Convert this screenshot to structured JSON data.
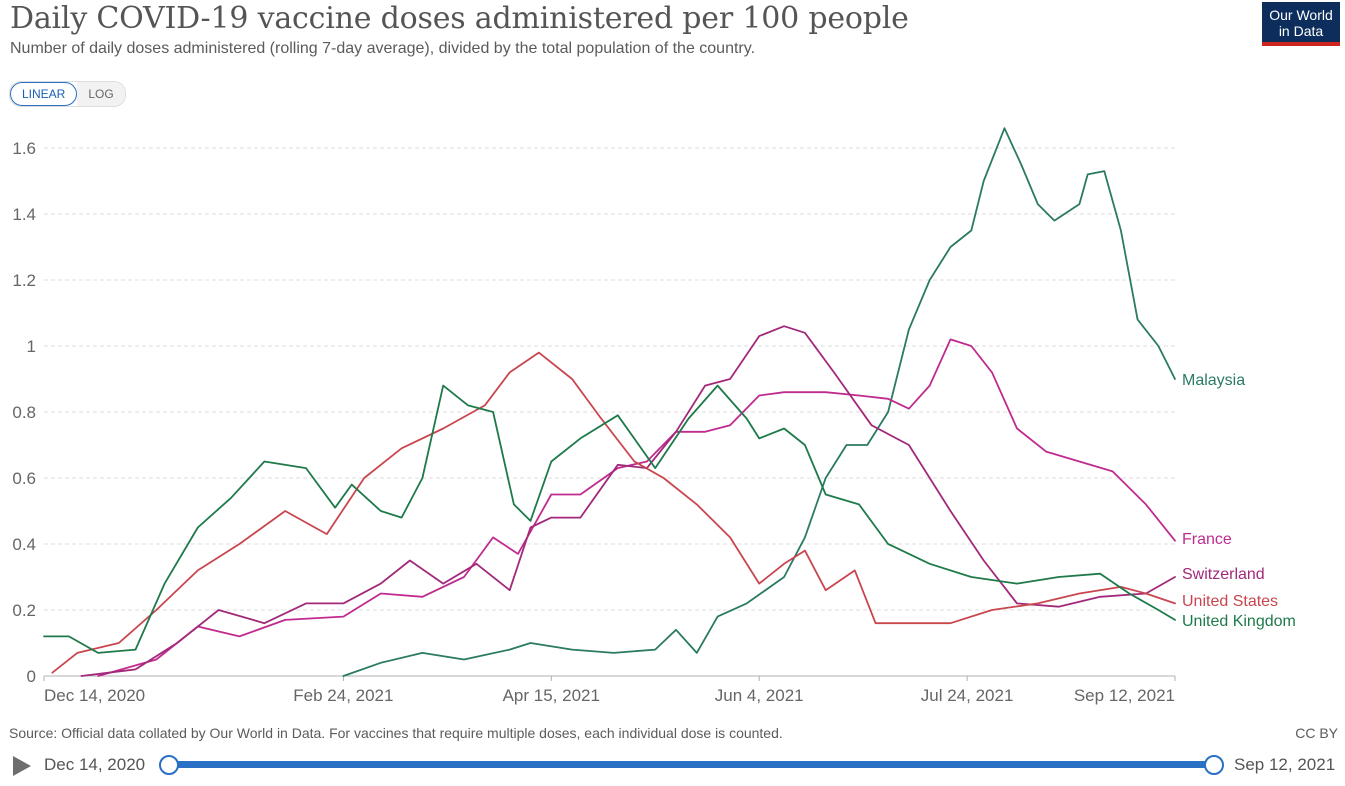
{
  "header": {
    "title": "Daily COVID-19 vaccine doses administered per 100 people",
    "subtitle": "Number of daily doses administered (rolling 7-day average), divided by the total population of the country.",
    "logo_line1": "Our World",
    "logo_line2": "in Data"
  },
  "controls": {
    "linear_label": "LINEAR",
    "log_label": "LOG"
  },
  "footer": {
    "source": "Source: Official data collated by Our World in Data. For vaccines that require multiple doses, each individual dose is counted.",
    "license": "CC BY"
  },
  "timeline": {
    "start_label": "Dec 14, 2020",
    "end_label": "Sep 12, 2021"
  },
  "chart_data": {
    "type": "line",
    "title": "Daily COVID-19 vaccine doses administered per 100 people",
    "xlabel": "",
    "ylabel": "",
    "x_range": [
      "2020-12-14",
      "2021-09-12"
    ],
    "ylim": [
      0,
      1.6
    ],
    "yticks": [
      0,
      0.2,
      0.4,
      0.6,
      0.8,
      1,
      1.2,
      1.4,
      1.6
    ],
    "ytick_labels": [
      "0",
      "0.2",
      "0.4",
      "0.6",
      "0.8",
      "1",
      "1.2",
      "1.4",
      "1.6"
    ],
    "xticks": [
      "2020-12-14",
      "2021-02-24",
      "2021-04-15",
      "2021-06-04",
      "2021-07-24",
      "2021-09-12"
    ],
    "xtick_labels": [
      "Dec 14, 2020",
      "Feb 24, 2021",
      "Apr 15, 2021",
      "Jun 4, 2021",
      "Jul 24, 2021",
      "Sep 12, 2021"
    ],
    "grid": "horizontal dashed",
    "legend": "inline labels at line ends (right)",
    "series": [
      {
        "name": "Malaysia",
        "color": "#2b7a63",
        "points": [
          [
            "2021-02-24",
            0
          ],
          [
            "2021-03-05",
            0.04
          ],
          [
            "2021-03-15",
            0.07
          ],
          [
            "2021-03-25",
            0.05
          ],
          [
            "2021-04-05",
            0.08
          ],
          [
            "2021-04-10",
            0.1
          ],
          [
            "2021-04-20",
            0.08
          ],
          [
            "2021-04-30",
            0.07
          ],
          [
            "2021-05-10",
            0.08
          ],
          [
            "2021-05-15",
            0.14
          ],
          [
            "2021-05-20",
            0.07
          ],
          [
            "2021-05-25",
            0.18
          ],
          [
            "2021-06-01",
            0.22
          ],
          [
            "2021-06-10",
            0.3
          ],
          [
            "2021-06-15",
            0.42
          ],
          [
            "2021-06-20",
            0.6
          ],
          [
            "2021-06-25",
            0.7
          ],
          [
            "2021-06-30",
            0.7
          ],
          [
            "2021-07-05",
            0.8
          ],
          [
            "2021-07-10",
            1.05
          ],
          [
            "2021-07-15",
            1.2
          ],
          [
            "2021-07-20",
            1.3
          ],
          [
            "2021-07-25",
            1.35
          ],
          [
            "2021-07-28",
            1.5
          ],
          [
            "2021-08-02",
            1.66
          ],
          [
            "2021-08-06",
            1.55
          ],
          [
            "2021-08-10",
            1.43
          ],
          [
            "2021-08-14",
            1.38
          ],
          [
            "2021-08-20",
            1.43
          ],
          [
            "2021-08-22",
            1.52
          ],
          [
            "2021-08-26",
            1.53
          ],
          [
            "2021-08-30",
            1.35
          ],
          [
            "2021-09-03",
            1.08
          ],
          [
            "2021-09-08",
            1.0
          ],
          [
            "2021-09-12",
            0.9
          ]
        ]
      },
      {
        "name": "France",
        "color": "#c02b8f",
        "points": [
          [
            "2020-12-27",
            0
          ],
          [
            "2021-01-10",
            0.05
          ],
          [
            "2021-01-20",
            0.15
          ],
          [
            "2021-01-30",
            0.12
          ],
          [
            "2021-02-10",
            0.17
          ],
          [
            "2021-02-24",
            0.18
          ],
          [
            "2021-03-05",
            0.25
          ],
          [
            "2021-03-15",
            0.24
          ],
          [
            "2021-03-25",
            0.3
          ],
          [
            "2021-04-01",
            0.42
          ],
          [
            "2021-04-07",
            0.37
          ],
          [
            "2021-04-15",
            0.55
          ],
          [
            "2021-04-22",
            0.55
          ],
          [
            "2021-05-01",
            0.63
          ],
          [
            "2021-05-08",
            0.65
          ],
          [
            "2021-05-15",
            0.74
          ],
          [
            "2021-05-22",
            0.74
          ],
          [
            "2021-05-28",
            0.76
          ],
          [
            "2021-06-04",
            0.85
          ],
          [
            "2021-06-10",
            0.86
          ],
          [
            "2021-06-20",
            0.86
          ],
          [
            "2021-06-28",
            0.85
          ],
          [
            "2021-07-05",
            0.84
          ],
          [
            "2021-07-10",
            0.81
          ],
          [
            "2021-07-15",
            0.88
          ],
          [
            "2021-07-20",
            1.02
          ],
          [
            "2021-07-25",
            1.0
          ],
          [
            "2021-07-30",
            0.92
          ],
          [
            "2021-08-05",
            0.75
          ],
          [
            "2021-08-12",
            0.68
          ],
          [
            "2021-08-20",
            0.65
          ],
          [
            "2021-08-28",
            0.62
          ],
          [
            "2021-09-05",
            0.52
          ],
          [
            "2021-09-12",
            0.41
          ]
        ]
      },
      {
        "name": "Switzerland",
        "color": "#a2297a",
        "points": [
          [
            "2020-12-23",
            0
          ],
          [
            "2021-01-05",
            0.02
          ],
          [
            "2021-01-15",
            0.1
          ],
          [
            "2021-01-25",
            0.2
          ],
          [
            "2021-02-05",
            0.16
          ],
          [
            "2021-02-15",
            0.22
          ],
          [
            "2021-02-24",
            0.22
          ],
          [
            "2021-03-05",
            0.28
          ],
          [
            "2021-03-12",
            0.35
          ],
          [
            "2021-03-20",
            0.28
          ],
          [
            "2021-03-28",
            0.34
          ],
          [
            "2021-04-05",
            0.26
          ],
          [
            "2021-04-10",
            0.45
          ],
          [
            "2021-04-15",
            0.48
          ],
          [
            "2021-04-22",
            0.48
          ],
          [
            "2021-05-01",
            0.64
          ],
          [
            "2021-05-08",
            0.63
          ],
          [
            "2021-05-15",
            0.74
          ],
          [
            "2021-05-22",
            0.88
          ],
          [
            "2021-05-28",
            0.9
          ],
          [
            "2021-06-04",
            1.03
          ],
          [
            "2021-06-10",
            1.06
          ],
          [
            "2021-06-15",
            1.04
          ],
          [
            "2021-06-22",
            0.92
          ],
          [
            "2021-07-01",
            0.76
          ],
          [
            "2021-07-10",
            0.7
          ],
          [
            "2021-07-20",
            0.5
          ],
          [
            "2021-07-28",
            0.35
          ],
          [
            "2021-08-05",
            0.22
          ],
          [
            "2021-08-15",
            0.21
          ],
          [
            "2021-08-25",
            0.24
          ],
          [
            "2021-09-05",
            0.25
          ],
          [
            "2021-09-12",
            0.3
          ]
        ]
      },
      {
        "name": "United States",
        "color": "#c9464f",
        "points": [
          [
            "2020-12-16",
            0.01
          ],
          [
            "2020-12-22",
            0.07
          ],
          [
            "2021-01-01",
            0.1
          ],
          [
            "2021-01-10",
            0.2
          ],
          [
            "2021-01-20",
            0.32
          ],
          [
            "2021-01-30",
            0.4
          ],
          [
            "2021-02-10",
            0.5
          ],
          [
            "2021-02-20",
            0.43
          ],
          [
            "2021-03-01",
            0.6
          ],
          [
            "2021-03-10",
            0.69
          ],
          [
            "2021-03-20",
            0.75
          ],
          [
            "2021-03-30",
            0.82
          ],
          [
            "2021-04-05",
            0.92
          ],
          [
            "2021-04-12",
            0.98
          ],
          [
            "2021-04-20",
            0.9
          ],
          [
            "2021-04-27",
            0.78
          ],
          [
            "2021-05-05",
            0.65
          ],
          [
            "2021-05-12",
            0.6
          ],
          [
            "2021-05-20",
            0.52
          ],
          [
            "2021-05-28",
            0.42
          ],
          [
            "2021-06-04",
            0.28
          ],
          [
            "2021-06-10",
            0.34
          ],
          [
            "2021-06-15",
            0.38
          ],
          [
            "2021-06-20",
            0.26
          ],
          [
            "2021-06-27",
            0.32
          ],
          [
            "2021-07-02",
            0.16
          ],
          [
            "2021-07-10",
            0.16
          ],
          [
            "2021-07-20",
            0.16
          ],
          [
            "2021-07-30",
            0.2
          ],
          [
            "2021-08-10",
            0.22
          ],
          [
            "2021-08-20",
            0.25
          ],
          [
            "2021-08-30",
            0.27
          ],
          [
            "2021-09-05",
            0.25
          ],
          [
            "2021-09-12",
            0.22
          ]
        ]
      },
      {
        "name": "United Kingdom",
        "color": "#1e7a4a",
        "points": [
          [
            "2020-12-14",
            0.12
          ],
          [
            "2020-12-20",
            0.12
          ],
          [
            "2020-12-27",
            0.07
          ],
          [
            "2021-01-05",
            0.08
          ],
          [
            "2021-01-12",
            0.28
          ],
          [
            "2021-01-20",
            0.45
          ],
          [
            "2021-01-28",
            0.54
          ],
          [
            "2021-02-05",
            0.65
          ],
          [
            "2021-02-15",
            0.63
          ],
          [
            "2021-02-22",
            0.51
          ],
          [
            "2021-02-26",
            0.58
          ],
          [
            "2021-03-05",
            0.5
          ],
          [
            "2021-03-10",
            0.48
          ],
          [
            "2021-03-15",
            0.6
          ],
          [
            "2021-03-20",
            0.88
          ],
          [
            "2021-03-26",
            0.82
          ],
          [
            "2021-04-01",
            0.8
          ],
          [
            "2021-04-06",
            0.52
          ],
          [
            "2021-04-10",
            0.47
          ],
          [
            "2021-04-15",
            0.65
          ],
          [
            "2021-04-22",
            0.72
          ],
          [
            "2021-05-01",
            0.79
          ],
          [
            "2021-05-10",
            0.63
          ],
          [
            "2021-05-18",
            0.78
          ],
          [
            "2021-05-25",
            0.88
          ],
          [
            "2021-06-01",
            0.78
          ],
          [
            "2021-06-04",
            0.72
          ],
          [
            "2021-06-10",
            0.75
          ],
          [
            "2021-06-15",
            0.7
          ],
          [
            "2021-06-20",
            0.55
          ],
          [
            "2021-06-28",
            0.52
          ],
          [
            "2021-07-05",
            0.4
          ],
          [
            "2021-07-15",
            0.34
          ],
          [
            "2021-07-25",
            0.3
          ],
          [
            "2021-08-05",
            0.28
          ],
          [
            "2021-08-15",
            0.3
          ],
          [
            "2021-08-25",
            0.31
          ],
          [
            "2021-09-01",
            0.25
          ],
          [
            "2021-09-08",
            0.2
          ],
          [
            "2021-09-12",
            0.17
          ]
        ]
      }
    ]
  }
}
